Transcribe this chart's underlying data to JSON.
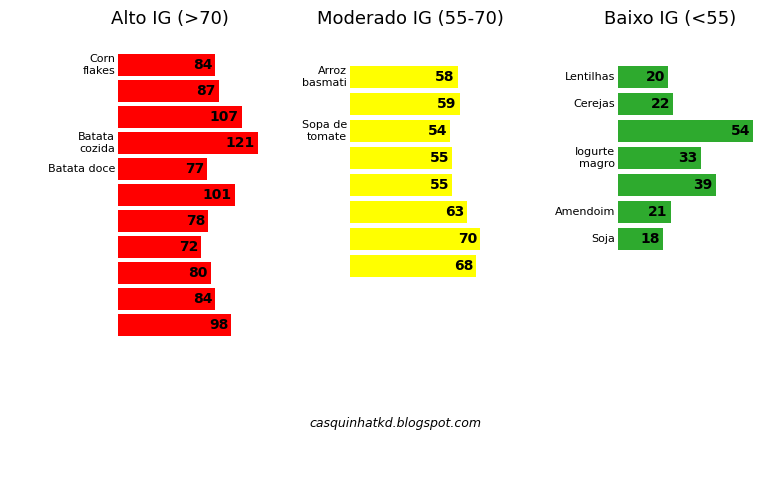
{
  "title_left": "Alto IG (>70)",
  "title_mid": "Moderado IG (55-70)",
  "title_right": "Baixo IG (<55)",
  "watermark": "casquinhatkd.blogspot.com",
  "left": {
    "labels": [
      "Corn\nflakes",
      "",
      "",
      "Batata\ncozida",
      "Batata doce",
      "",
      "",
      "",
      "",
      "",
      ""
    ],
    "values": [
      84,
      87,
      107,
      121,
      77,
      101,
      78,
      72,
      80,
      84,
      98
    ],
    "color": "#FF0000"
  },
  "mid": {
    "labels": [
      "Arroz\nbasmati",
      "",
      "Sopa de\ntomate",
      "",
      "",
      "",
      "",
      ""
    ],
    "values": [
      58,
      59,
      54,
      55,
      55,
      63,
      70,
      68
    ],
    "color": "#FFFF00"
  },
  "right": {
    "labels": [
      "Lentilhas",
      "Cerejas",
      "",
      "Iogurte\nmagro",
      "",
      "Amendoim",
      "Soja"
    ],
    "values": [
      20,
      22,
      54,
      33,
      39,
      21,
      18
    ],
    "color": "#2EAA2E"
  },
  "bg_color": "#FFFFFF",
  "title_fontsize": 13,
  "bar_fontsize": 10,
  "label_fontsize": 8
}
